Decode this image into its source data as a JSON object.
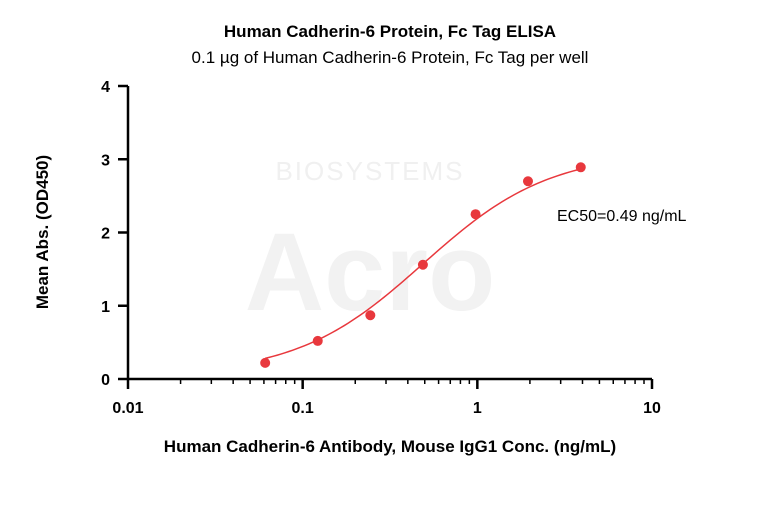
{
  "chart_data": {
    "type": "scatter",
    "title": "Human Cadherin-6 Protein, Fc Tag ELISA",
    "subtitle": "0.1 µg of Human Cadherin-6 Protein, Fc Tag per well",
    "xlabel": "Human Cadherin-6 Antibody, Mouse IgG1 Conc. (ng/mL)",
    "ylabel": "Mean Abs. (OD450)",
    "x_scale": "log",
    "xlim": [
      0.01,
      10
    ],
    "ylim": [
      0,
      4
    ],
    "x_ticks": [
      0.01,
      0.1,
      1,
      10
    ],
    "x_tick_labels": [
      "0.01",
      "0.1",
      "1",
      "10"
    ],
    "y_ticks": [
      0,
      1,
      2,
      3,
      4
    ],
    "y_tick_labels": [
      "0",
      "1",
      "2",
      "3",
      "4"
    ],
    "grid": false,
    "series": [
      {
        "x": [
          0.061,
          0.122,
          0.244,
          0.488,
          0.977,
          1.95,
          3.91
        ],
        "y": [
          0.22,
          0.52,
          0.87,
          1.56,
          2.25,
          2.7,
          2.89
        ],
        "color": "#e8383d",
        "fit": "4PL"
      }
    ],
    "fit_params": {
      "bottom": 0.05,
      "top": 3.1,
      "ec50": 0.49,
      "hill": 1.2
    },
    "annotation": "EC50=0.49 ng/mL",
    "watermark": {
      "text": "Acro",
      "subtext": "BIOSYSTEMS"
    }
  }
}
